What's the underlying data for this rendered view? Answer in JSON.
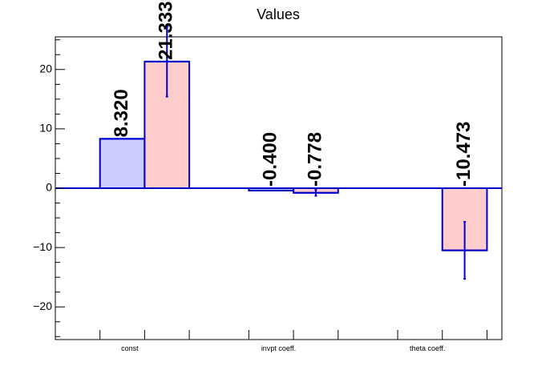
{
  "chart_data": {
    "type": "bar",
    "title": "Values",
    "xlabel": "",
    "ylabel": "",
    "categories": [
      "const",
      "invpt coeff.",
      "theta coeff."
    ],
    "ylim": [
      -25.5,
      25.5
    ],
    "yticks": [
      -20,
      -10,
      0,
      10,
      20
    ],
    "ytick_labels": [
      "−20",
      "−10",
      "0",
      "10",
      "20"
    ],
    "series": [
      {
        "color": "#ccccff",
        "values": [
          8.32,
          -0.4,
          null
        ],
        "errors": [
          0,
          0,
          null
        ],
        "labels": [
          "8.320",
          "-0.400",
          ""
        ]
      },
      {
        "color": "#ffcccc",
        "values": [
          21.333,
          -0.778,
          -10.473
        ],
        "errors": [
          5.9,
          0.5,
          4.8
        ],
        "labels": [
          "21.333",
          "-0.778",
          "-10.473"
        ]
      }
    ],
    "edge_color": "#0000cc",
    "grid": false,
    "legend": "none"
  }
}
